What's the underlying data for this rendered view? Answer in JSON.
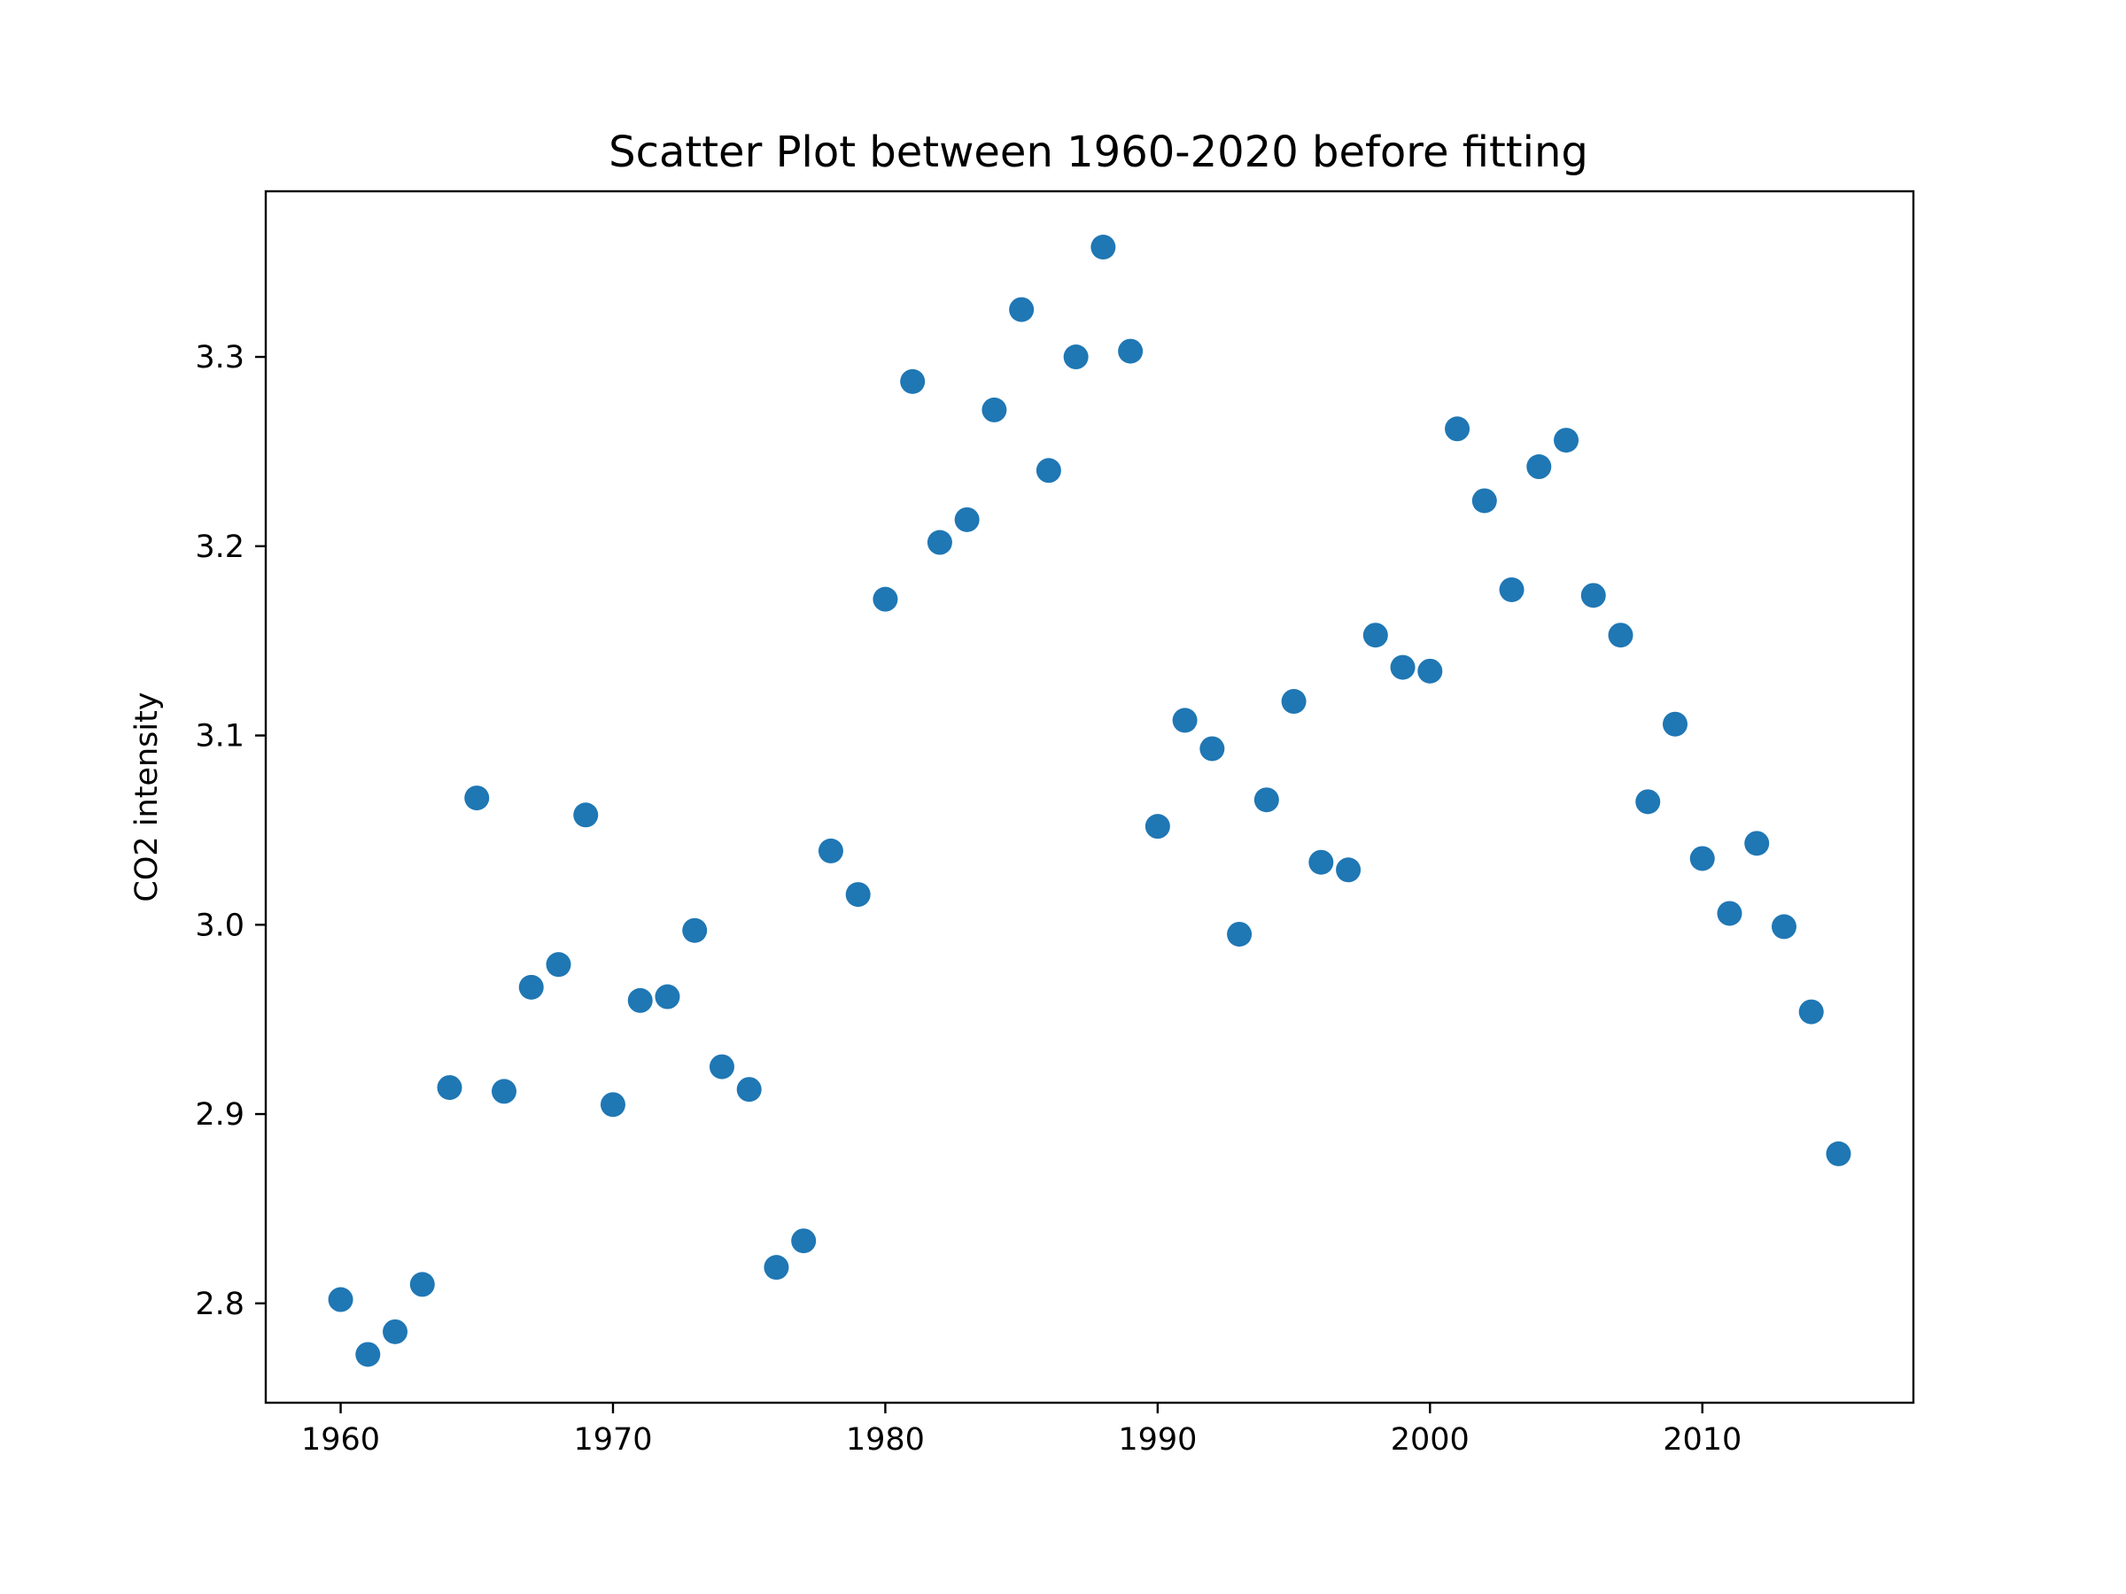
{
  "chart_data": {
    "type": "scatter",
    "title": "Scatter Plot between 1960-2020 before fitting",
    "xlabel": "",
    "ylabel": "CO2 intensity",
    "xlim": [
      1957.25,
      2017.75
    ],
    "ylim": [
      2.7475,
      3.3875
    ],
    "xticks": [
      1960,
      1970,
      1980,
      1990,
      2000,
      2010
    ],
    "yticks": [
      2.8,
      2.9,
      3.0,
      3.1,
      3.2,
      3.3
    ],
    "grid": false,
    "legend": "none",
    "color": "#1f77b4",
    "series": [
      {
        "x": [
          1960,
          1961,
          1962,
          1963,
          1964,
          1965,
          1966,
          1967,
          1968,
          1969,
          1970,
          1971,
          1972,
          1973,
          1974,
          1975,
          1976,
          1977,
          1978,
          1979,
          1980,
          1981,
          1982,
          1983,
          1984,
          1985,
          1986,
          1987,
          1988,
          1989,
          1990,
          1991,
          1992,
          1993,
          1994,
          1995,
          1996,
          1997,
          1998,
          1999,
          2000,
          2001,
          2002,
          2003,
          2004,
          2005,
          2006,
          2007,
          2008,
          2009,
          2010,
          2011,
          2012,
          2013,
          2014,
          2015
        ],
        "y": [
          2.802,
          2.773,
          2.785,
          2.81,
          2.914,
          3.067,
          2.912,
          2.967,
          2.979,
          3.058,
          2.905,
          2.96,
          2.962,
          2.997,
          2.925,
          2.913,
          2.819,
          2.833,
          3.039,
          3.016,
          3.172,
          3.287,
          3.202,
          3.214,
          3.272,
          3.325,
          3.24,
          3.3,
          3.358,
          3.303,
          3.052,
          3.108,
          3.093,
          2.995,
          3.066,
          3.118,
          3.033,
          3.029,
          3.153,
          3.136,
          3.134,
          3.262,
          3.224,
          3.177,
          3.242,
          3.256,
          3.174,
          3.153,
          3.065,
          3.106,
          3.035,
          3.006,
          3.043,
          2.999,
          2.954,
          2.879
        ]
      }
    ]
  }
}
